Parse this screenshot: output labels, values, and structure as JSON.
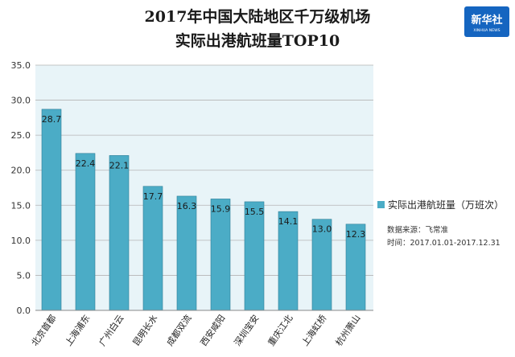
{
  "logo": {
    "cn": "新华社",
    "en": "XINHUA NEWS"
  },
  "source_note": "数据来源：飞常准",
  "time_note": "时间：2017.01.01-2017.12.31",
  "colors": {
    "bar": "#4bacc6",
    "bar_edge": "#2c7d96",
    "plot_bg": "#e8f4f8",
    "grid": "#b5b5b5"
  },
  "chart_data": {
    "type": "bar",
    "title_lines": [
      "2017年中国大陆地区千万级机场",
      "实际出港航班量TOP10"
    ],
    "categories": [
      "北京首都",
      "上海浦东",
      "广州白云",
      "昆明长水",
      "成都双流",
      "西安咸阳",
      "深圳宝安",
      "重庆江北",
      "上海虹桥",
      "杭州萧山"
    ],
    "series": [
      {
        "name": "实际出港航班量（万班次）",
        "values": [
          28.7,
          22.4,
          22.1,
          17.7,
          16.3,
          15.9,
          15.5,
          14.1,
          13.0,
          12.3
        ],
        "value_labels": [
          "28.7",
          "22.4",
          "22.1",
          "17.7",
          "16.3",
          "15.9",
          "15.5",
          "14.1",
          "13.0",
          "12.3"
        ]
      }
    ],
    "yticks": [
      "0.0",
      "5.0",
      "10.0",
      "15.0",
      "20.0",
      "25.0",
      "30.0",
      "35.0"
    ],
    "ylim": [
      0,
      35
    ],
    "grid": true,
    "legend_position": "right"
  }
}
